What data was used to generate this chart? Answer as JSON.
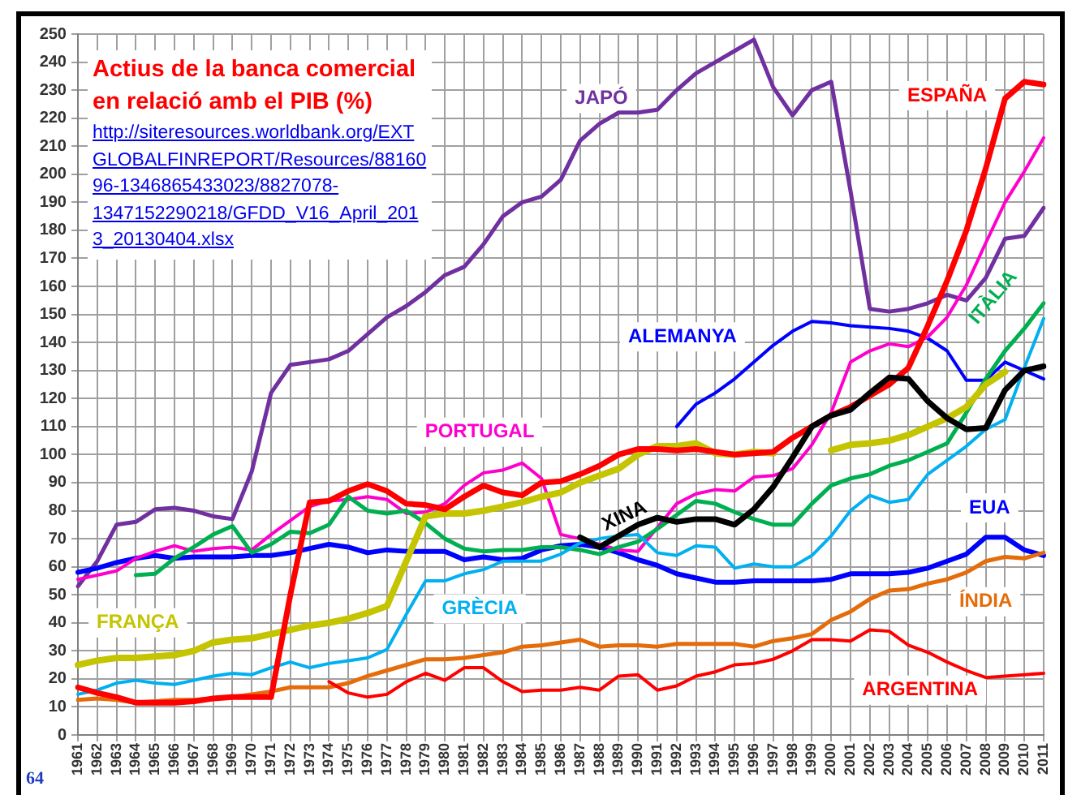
{
  "chart_data": {
    "type": "line",
    "title": "Actius de la banca comercial en relació amb el PIB (%)",
    "subtitle": "http://siteresources.worldbank.org/EXTGLOBALFINREPORT/Resources/8816096-1346865433023/8827078-1347152290218/GFDD_V16_April_2013_20130404.xlsx",
    "annotations": [
      "64"
    ],
    "categories": [
      "1961",
      "1962",
      "1963",
      "1964",
      "1965",
      "1966",
      "1967",
      "1968",
      "1969",
      "1970",
      "1971",
      "1972",
      "1973",
      "1974",
      "1975",
      "1976",
      "1977",
      "1978",
      "1979",
      "1980",
      "1981",
      "1982",
      "1983",
      "1984",
      "1985",
      "1986",
      "1987",
      "1988",
      "1989",
      "1990",
      "1991",
      "1992",
      "1993",
      "1994",
      "1995",
      "1996",
      "1997",
      "1998",
      "1999",
      "2000",
      "2001",
      "2002",
      "2003",
      "2004",
      "2005",
      "2006",
      "2007",
      "2008",
      "2009",
      "2010",
      "2011"
    ],
    "series": [
      {
        "name": "JAPÓ",
        "color": "#7030a0",
        "values": [
          53,
          62,
          75,
          76,
          80.5,
          81,
          80,
          78,
          77,
          94,
          122,
          132,
          133,
          134,
          137,
          143,
          149,
          153,
          158,
          164,
          167,
          175,
          185,
          190,
          192,
          198,
          212,
          218,
          222,
          222,
          223,
          230,
          236,
          240,
          244,
          248,
          231,
          221,
          230,
          233,
          194,
          152,
          151,
          152,
          154,
          157,
          155,
          163,
          177,
          178,
          188
        ]
      },
      {
        "name": "ALEMANYA",
        "color": "#0000ff",
        "values": [
          null,
          null,
          null,
          null,
          null,
          null,
          null,
          null,
          null,
          null,
          null,
          null,
          null,
          null,
          null,
          null,
          null,
          null,
          null,
          null,
          null,
          null,
          null,
          null,
          null,
          null,
          null,
          null,
          null,
          null,
          null,
          110,
          118,
          122,
          127,
          133,
          139,
          144,
          147.5,
          147,
          146,
          145.5,
          145,
          144,
          141.5,
          137,
          126.5,
          126.5,
          133,
          130,
          127
        ]
      },
      {
        "name": "EUA",
        "color": "#0000ff",
        "values": [
          58,
          59.5,
          61.5,
          63,
          64,
          63,
          63.5,
          63.5,
          63.5,
          64,
          64,
          65,
          66.5,
          68,
          67,
          65,
          66,
          65.5,
          65.5,
          65.5,
          62.5,
          63.5,
          62.5,
          63,
          66,
          67.5,
          68,
          67,
          65,
          62.5,
          60.5,
          57.5,
          56,
          54.5,
          54.5,
          55,
          55,
          55,
          55,
          55.5,
          57.5,
          57.5,
          57.5,
          58,
          59.5,
          62,
          64.5,
          70.5,
          70.5,
          66,
          64
        ]
      },
      {
        "name": "PORTUGAL",
        "color": "#ff00cc",
        "values": [
          55.5,
          57,
          58.5,
          63,
          65.5,
          67.5,
          65.5,
          66.5,
          67,
          66,
          71.5,
          76.5,
          81.5,
          83.5,
          84,
          85,
          84,
          79,
          79.5,
          82.5,
          89,
          93.5,
          94.5,
          97,
          91.5,
          71.5,
          70,
          68,
          66,
          65.5,
          74,
          82.5,
          86,
          87.5,
          87,
          92,
          92.5,
          95,
          103.5,
          115,
          133,
          137,
          139.5,
          138.5,
          142,
          149,
          160.5,
          175.5,
          190,
          201,
          213
        ]
      },
      {
        "name": "ITÀLIA",
        "color": "#00b050",
        "values": [
          null,
          null,
          null,
          57,
          57.5,
          63,
          67,
          71.5,
          74.5,
          65,
          68,
          72.5,
          72,
          75,
          85,
          80,
          79,
          80,
          75.5,
          70,
          66.5,
          65.5,
          66,
          66,
          67,
          67,
          66,
          64.5,
          67,
          69,
          73.5,
          78.5,
          83.5,
          82.5,
          79.5,
          77,
          75,
          75,
          82.5,
          89,
          91.5,
          93,
          96,
          98,
          101,
          104,
          115,
          127,
          137,
          145,
          154
        ]
      },
      {
        "name": "GRÈCIA",
        "color": "#00b0f0",
        "values": [
          14.5,
          16,
          18.5,
          19.5,
          18.5,
          18,
          19.5,
          21,
          22,
          21.5,
          24,
          26,
          24,
          25.5,
          26.5,
          27.5,
          30.5,
          43,
          55,
          55,
          57.5,
          59,
          62,
          62,
          62,
          64.5,
          68.5,
          70,
          71,
          71.5,
          65,
          64,
          67.5,
          67,
          59.5,
          61,
          60,
          60,
          64,
          71,
          80,
          85.5,
          83,
          84,
          93,
          98,
          103,
          109,
          112.5,
          131,
          148.5
        ]
      },
      {
        "name": "FRANÇA",
        "color": "#c4c400",
        "values": [
          25,
          26.5,
          27.5,
          27.5,
          28,
          28.5,
          30,
          33,
          34,
          34.5,
          36,
          37.5,
          39,
          40,
          41.5,
          43.5,
          46,
          62,
          78,
          79,
          79,
          80,
          81.5,
          83,
          85,
          86.5,
          90,
          92.5,
          95,
          100,
          103,
          103,
          104,
          100.5,
          100,
          101,
          100.5,
          null,
          null,
          101.5,
          103.5,
          104,
          105,
          107,
          110,
          113,
          117,
          125,
          129.5,
          null,
          null
        ]
      },
      {
        "name": "ÍNDIA",
        "color": "#e46c0a",
        "values": [
          12.5,
          13,
          12.5,
          11.5,
          12,
          12.5,
          12.5,
          13,
          13.5,
          14.5,
          15.5,
          17,
          17,
          17,
          18.5,
          21,
          23,
          25,
          27,
          27,
          27.5,
          28.5,
          29.5,
          31.5,
          32,
          33,
          34,
          31.5,
          32,
          32,
          31.5,
          32.5,
          32.5,
          32.5,
          32.5,
          31.5,
          33.5,
          34.5,
          36,
          41,
          44,
          48.5,
          51.5,
          52,
          54,
          55.5,
          58,
          62,
          63.5,
          63,
          65
        ]
      },
      {
        "name": "ARGENTINA",
        "color": "#ff0000",
        "values": [
          null,
          null,
          null,
          null,
          null,
          null,
          null,
          null,
          null,
          null,
          null,
          null,
          null,
          19,
          15,
          13.5,
          14.5,
          19,
          22,
          19.5,
          24,
          24,
          19,
          15.5,
          16,
          16,
          17,
          16,
          21,
          21.5,
          16,
          17.5,
          21,
          22.5,
          25,
          25.5,
          27,
          30,
          34,
          34,
          33.5,
          37.5,
          37,
          32,
          29.5,
          26,
          23,
          20.5,
          21,
          21.5,
          22
        ]
      },
      {
        "name": "ESPAÑA",
        "color": "#ff0000",
        "values": [
          17,
          15,
          13.5,
          11.5,
          11.5,
          11.5,
          12,
          13,
          13.5,
          13.5,
          13.5,
          50,
          83,
          83.5,
          87,
          89.5,
          87,
          82.5,
          82,
          80.5,
          85,
          89,
          86.5,
          85.5,
          90,
          90.5,
          93,
          96,
          100,
          102,
          102,
          101.5,
          102,
          101,
          100,
          100.5,
          101,
          106,
          110,
          114,
          117,
          121,
          125,
          131,
          146,
          162,
          180,
          202,
          227,
          233,
          232
        ]
      },
      {
        "name": "XINA",
        "color": "#000000",
        "values": [
          null,
          null,
          null,
          null,
          null,
          null,
          null,
          null,
          null,
          null,
          null,
          null,
          null,
          null,
          null,
          null,
          null,
          null,
          null,
          null,
          null,
          null,
          null,
          null,
          null,
          null,
          70.5,
          67,
          71,
          75,
          77.5,
          76,
          77,
          77,
          75,
          80.5,
          88.5,
          99,
          110,
          114,
          116,
          122,
          127.5,
          127,
          119,
          113,
          109,
          109.5,
          123,
          130,
          131.5
        ]
      }
    ],
    "ylim": [
      0,
      250
    ],
    "yticks": [
      0,
      10,
      20,
      30,
      40,
      50,
      60,
      70,
      80,
      90,
      100,
      110,
      120,
      130,
      140,
      150,
      160,
      170,
      180,
      190,
      200,
      210,
      220,
      230,
      240,
      250
    ],
    "grid": true,
    "legend": false,
    "marker": "none"
  }
}
